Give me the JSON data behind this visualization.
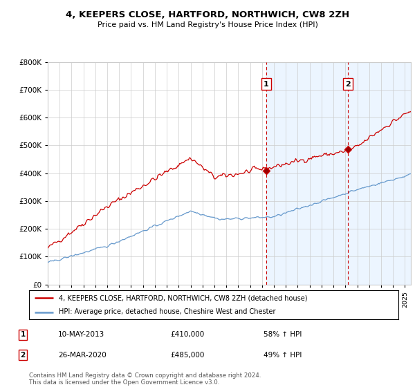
{
  "title": "4, KEEPERS CLOSE, HARTFORD, NORTHWICH, CW8 2ZH",
  "subtitle": "Price paid vs. HM Land Registry's House Price Index (HPI)",
  "ylabel_ticks": [
    "£0",
    "£100K",
    "£200K",
    "£300K",
    "£400K",
    "£500K",
    "£600K",
    "£700K",
    "£800K"
  ],
  "ylim": [
    0,
    800000
  ],
  "xlim_start": 1995.0,
  "xlim_end": 2025.5,
  "sale1_date": 2013.36,
  "sale1_label": "1",
  "sale1_price": 410000,
  "sale2_date": 2020.23,
  "sale2_label": "2",
  "sale2_price": 485000,
  "legend_line1": "4, KEEPERS CLOSE, HARTFORD, NORTHWICH, CW8 2ZH (detached house)",
  "legend_line2": "HPI: Average price, detached house, Cheshire West and Chester",
  "footer": "Contains HM Land Registry data © Crown copyright and database right 2024.\nThis data is licensed under the Open Government Licence v3.0.",
  "red_color": "#cc0000",
  "blue_color": "#6699cc",
  "dashed_line_color": "#cc0000",
  "shaded_color": "#ddeeff",
  "background_color": "#ffffff",
  "grid_color": "#cccccc",
  "label_box_color": "#cc0000"
}
